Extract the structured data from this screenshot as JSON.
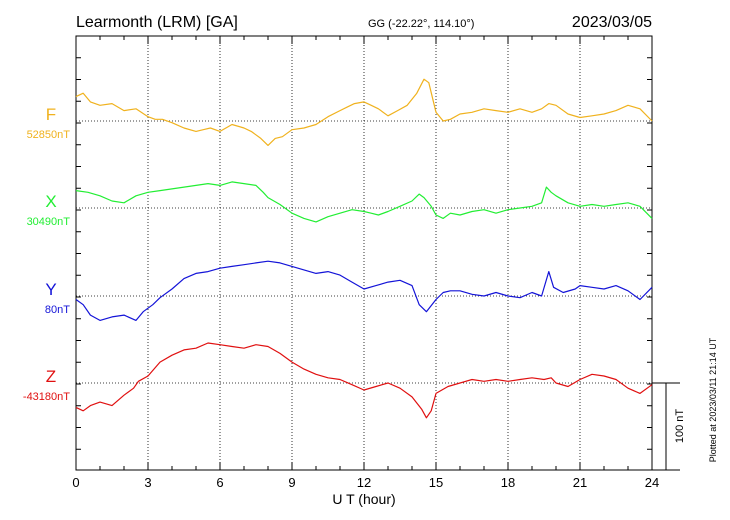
{
  "header": {
    "station": "Learmonth (LRM)  [GA]",
    "coords": "GG (-22.22°, 114.10°)",
    "date": "2023/03/05"
  },
  "side_note": "Plotted at 2023/03/11 21:14 UT",
  "scale_bar": {
    "label": "100 nT",
    "value_nT": 100
  },
  "chart_data": {
    "type": "line",
    "xlabel": "U T (hour)",
    "xlim": [
      0,
      24
    ],
    "xticks": [
      "0",
      "3",
      "6",
      "9",
      "12",
      "15",
      "18",
      "21",
      "24"
    ],
    "grid": true,
    "vertical_scale_nT_per_grid": 100,
    "series": [
      {
        "name": "F",
        "baseline_label": "52850nT",
        "baseline_nT": 52850,
        "color": "#f0b21e",
        "points": [
          [
            0,
            28
          ],
          [
            0.3,
            32
          ],
          [
            0.6,
            22
          ],
          [
            1,
            18
          ],
          [
            1.5,
            20
          ],
          [
            2,
            12
          ],
          [
            2.5,
            14
          ],
          [
            3,
            5
          ],
          [
            3.3,
            2
          ],
          [
            3.6,
            2
          ],
          [
            4,
            -2
          ],
          [
            4.5,
            -8
          ],
          [
            5,
            -12
          ],
          [
            5.3,
            -10
          ],
          [
            5.6,
            -8
          ],
          [
            6,
            -12
          ],
          [
            6.5,
            -4
          ],
          [
            7,
            -8
          ],
          [
            7.3,
            -12
          ],
          [
            7.7,
            -20
          ],
          [
            8,
            -28
          ],
          [
            8.3,
            -20
          ],
          [
            8.6,
            -18
          ],
          [
            9,
            -10
          ],
          [
            9.5,
            -8
          ],
          [
            10,
            -4
          ],
          [
            10.5,
            5
          ],
          [
            11,
            12
          ],
          [
            11.3,
            16
          ],
          [
            11.6,
            20
          ],
          [
            12,
            22
          ],
          [
            12.3,
            18
          ],
          [
            12.6,
            14
          ],
          [
            13,
            6
          ],
          [
            13.4,
            12
          ],
          [
            13.8,
            18
          ],
          [
            14.2,
            32
          ],
          [
            14.5,
            48
          ],
          [
            14.7,
            44
          ],
          [
            15,
            10
          ],
          [
            15.3,
            0
          ],
          [
            15.6,
            2
          ],
          [
            16,
            8
          ],
          [
            16.5,
            10
          ],
          [
            17,
            14
          ],
          [
            17.5,
            12
          ],
          [
            18,
            10
          ],
          [
            18.5,
            14
          ],
          [
            19,
            10
          ],
          [
            19.4,
            14
          ],
          [
            19.7,
            20
          ],
          [
            20,
            18
          ],
          [
            20.5,
            8
          ],
          [
            21,
            4
          ],
          [
            21.5,
            6
          ],
          [
            22,
            8
          ],
          [
            22.5,
            12
          ],
          [
            23,
            18
          ],
          [
            23.5,
            14
          ],
          [
            24,
            0
          ]
        ]
      },
      {
        "name": "X",
        "baseline_label": "30490nT",
        "baseline_nT": 30490,
        "color": "#22ee33",
        "points": [
          [
            0,
            20
          ],
          [
            0.5,
            18
          ],
          [
            1,
            14
          ],
          [
            1.5,
            8
          ],
          [
            2,
            6
          ],
          [
            2.5,
            14
          ],
          [
            3,
            18
          ],
          [
            3.5,
            20
          ],
          [
            4,
            22
          ],
          [
            4.5,
            24
          ],
          [
            5,
            26
          ],
          [
            5.5,
            28
          ],
          [
            6,
            26
          ],
          [
            6.5,
            30
          ],
          [
            7,
            28
          ],
          [
            7.5,
            26
          ],
          [
            7.8,
            18
          ],
          [
            8,
            12
          ],
          [
            8.5,
            4
          ],
          [
            9,
            -6
          ],
          [
            9.5,
            -12
          ],
          [
            10,
            -16
          ],
          [
            10.5,
            -10
          ],
          [
            11,
            -6
          ],
          [
            11.5,
            -2
          ],
          [
            12,
            -4
          ],
          [
            12.3,
            -6
          ],
          [
            12.6,
            -8
          ],
          [
            13,
            -4
          ],
          [
            13.5,
            2
          ],
          [
            14,
            8
          ],
          [
            14.3,
            16
          ],
          [
            14.5,
            12
          ],
          [
            14.8,
            2
          ],
          [
            15,
            -8
          ],
          [
            15.3,
            -12
          ],
          [
            15.6,
            -6
          ],
          [
            16,
            -8
          ],
          [
            16.5,
            -4
          ],
          [
            17,
            -2
          ],
          [
            17.5,
            -6
          ],
          [
            18,
            -2
          ],
          [
            18.5,
            0
          ],
          [
            19,
            2
          ],
          [
            19.4,
            6
          ],
          [
            19.6,
            24
          ],
          [
            19.8,
            18
          ],
          [
            20,
            14
          ],
          [
            20.5,
            6
          ],
          [
            21,
            2
          ],
          [
            21.5,
            4
          ],
          [
            22,
            2
          ],
          [
            22.5,
            4
          ],
          [
            23,
            6
          ],
          [
            23.5,
            2
          ],
          [
            24,
            -12
          ]
        ]
      },
      {
        "name": "Y",
        "baseline_label": "80nT",
        "baseline_nT": 80,
        "color": "#1414d8",
        "points": [
          [
            0,
            -4
          ],
          [
            0.3,
            -10
          ],
          [
            0.6,
            -22
          ],
          [
            1,
            -28
          ],
          [
            1.5,
            -24
          ],
          [
            2,
            -22
          ],
          [
            2.5,
            -28
          ],
          [
            2.8,
            -18
          ],
          [
            3.2,
            -10
          ],
          [
            3.5,
            -2
          ],
          [
            4,
            8
          ],
          [
            4.5,
            20
          ],
          [
            5,
            26
          ],
          [
            5.5,
            28
          ],
          [
            6,
            32
          ],
          [
            6.5,
            34
          ],
          [
            7,
            36
          ],
          [
            7.5,
            38
          ],
          [
            8,
            40
          ],
          [
            8.5,
            38
          ],
          [
            9,
            34
          ],
          [
            9.5,
            30
          ],
          [
            10,
            26
          ],
          [
            10.5,
            28
          ],
          [
            11,
            24
          ],
          [
            11.5,
            16
          ],
          [
            12,
            8
          ],
          [
            12.5,
            12
          ],
          [
            13,
            16
          ],
          [
            13.5,
            18
          ],
          [
            14,
            12
          ],
          [
            14.3,
            -10
          ],
          [
            14.6,
            -18
          ],
          [
            15,
            -4
          ],
          [
            15.3,
            4
          ],
          [
            15.6,
            6
          ],
          [
            16,
            6
          ],
          [
            16.5,
            2
          ],
          [
            17,
            0
          ],
          [
            17.5,
            4
          ],
          [
            18,
            0
          ],
          [
            18.5,
            -2
          ],
          [
            19,
            4
          ],
          [
            19.4,
            0
          ],
          [
            19.7,
            28
          ],
          [
            19.9,
            10
          ],
          [
            20.3,
            4
          ],
          [
            20.8,
            8
          ],
          [
            21,
            12
          ],
          [
            21.5,
            10
          ],
          [
            22,
            8
          ],
          [
            22.5,
            12
          ],
          [
            23,
            6
          ],
          [
            23.5,
            -4
          ],
          [
            24,
            10
          ]
        ]
      },
      {
        "name": "Z",
        "baseline_label": "-43180nT",
        "baseline_nT": -43180,
        "color": "#e01010",
        "points": [
          [
            0,
            -28
          ],
          [
            0.3,
            -32
          ],
          [
            0.6,
            -26
          ],
          [
            1,
            -22
          ],
          [
            1.5,
            -26
          ],
          [
            2,
            -14
          ],
          [
            2.4,
            -6
          ],
          [
            2.6,
            2
          ],
          [
            3,
            8
          ],
          [
            3.5,
            24
          ],
          [
            4,
            32
          ],
          [
            4.5,
            38
          ],
          [
            5,
            40
          ],
          [
            5.5,
            46
          ],
          [
            6,
            44
          ],
          [
            6.5,
            42
          ],
          [
            7,
            40
          ],
          [
            7.5,
            44
          ],
          [
            8,
            42
          ],
          [
            8.5,
            34
          ],
          [
            9,
            24
          ],
          [
            9.5,
            16
          ],
          [
            10,
            10
          ],
          [
            10.5,
            6
          ],
          [
            11,
            4
          ],
          [
            11.5,
            -2
          ],
          [
            12,
            -8
          ],
          [
            12.5,
            -4
          ],
          [
            13,
            0
          ],
          [
            13.5,
            -6
          ],
          [
            14,
            -16
          ],
          [
            14.4,
            -30
          ],
          [
            14.6,
            -40
          ],
          [
            14.8,
            -32
          ],
          [
            15,
            -12
          ],
          [
            15.5,
            -4
          ],
          [
            16,
            0
          ],
          [
            16.5,
            4
          ],
          [
            17,
            2
          ],
          [
            17.5,
            4
          ],
          [
            18,
            2
          ],
          [
            18.5,
            4
          ],
          [
            19,
            6
          ],
          [
            19.5,
            4
          ],
          [
            19.8,
            6
          ],
          [
            20,
            0
          ],
          [
            20.5,
            -4
          ],
          [
            21,
            4
          ],
          [
            21.5,
            10
          ],
          [
            22,
            8
          ],
          [
            22.5,
            4
          ],
          [
            23,
            -6
          ],
          [
            23.5,
            -12
          ],
          [
            24,
            -2
          ]
        ]
      }
    ]
  }
}
